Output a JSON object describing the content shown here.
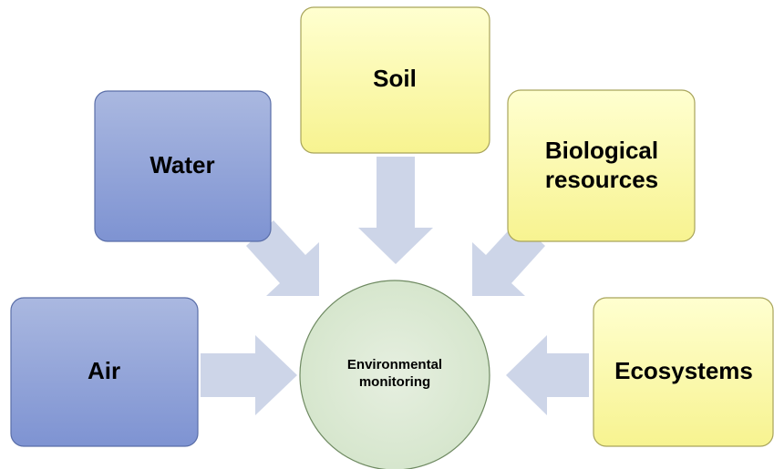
{
  "center": {
    "lines": [
      "Environmental",
      "monitoring"
    ]
  },
  "nodes": [
    {
      "lines": [
        "Air"
      ]
    },
    {
      "lines": [
        "Water"
      ]
    },
    {
      "lines": [
        "Soil"
      ]
    },
    {
      "lines": [
        "Biological",
        "resources"
      ]
    },
    {
      "lines": [
        "Ecosystems"
      ]
    }
  ]
}
